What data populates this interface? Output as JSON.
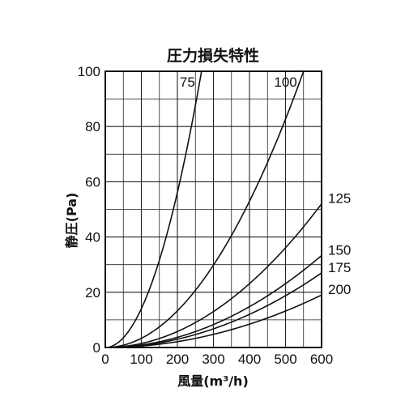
{
  "chart_data": {
    "type": "line",
    "title": "圧力損失特性",
    "xlabel": "風量(m³/h)",
    "ylabel": "静圧(Pa)",
    "xlim": [
      0,
      600
    ],
    "ylim": [
      0,
      100
    ],
    "x_ticks": [
      "0",
      "100",
      "200",
      "300",
      "400",
      "500",
      "600"
    ],
    "y_ticks": [
      "0",
      "20",
      "40",
      "60",
      "80",
      "100"
    ],
    "grid": true,
    "series": [
      {
        "name": "75",
        "x": [
          0,
          50,
          100,
          150,
          200,
          250,
          267
        ],
        "y": [
          0,
          3.5,
          14,
          31.6,
          56,
          87.5,
          100
        ]
      },
      {
        "name": "100",
        "x": [
          0,
          100,
          200,
          300,
          400,
          500,
          550
        ],
        "y": [
          0,
          3.3,
          13.2,
          29.8,
          52.9,
          82.6,
          100
        ]
      },
      {
        "name": "125",
        "x": [
          0,
          100,
          200,
          300,
          400,
          500,
          600
        ],
        "y": [
          0,
          1.44,
          5.8,
          13,
          23.1,
          36.1,
          52
        ]
      },
      {
        "name": "150",
        "x": [
          0,
          100,
          200,
          300,
          400,
          500,
          600
        ],
        "y": [
          0,
          0.92,
          3.7,
          8.3,
          14.8,
          23.1,
          33.3
        ]
      },
      {
        "name": "175",
        "x": [
          0,
          100,
          200,
          300,
          400,
          500,
          600
        ],
        "y": [
          0,
          0.75,
          3,
          6.75,
          12,
          18.75,
          27
        ]
      },
      {
        "name": "200",
        "x": [
          0,
          100,
          200,
          300,
          400,
          500,
          600
        ],
        "y": [
          0,
          0.53,
          2.1,
          4.75,
          8.4,
          13.2,
          19
        ]
      }
    ]
  }
}
